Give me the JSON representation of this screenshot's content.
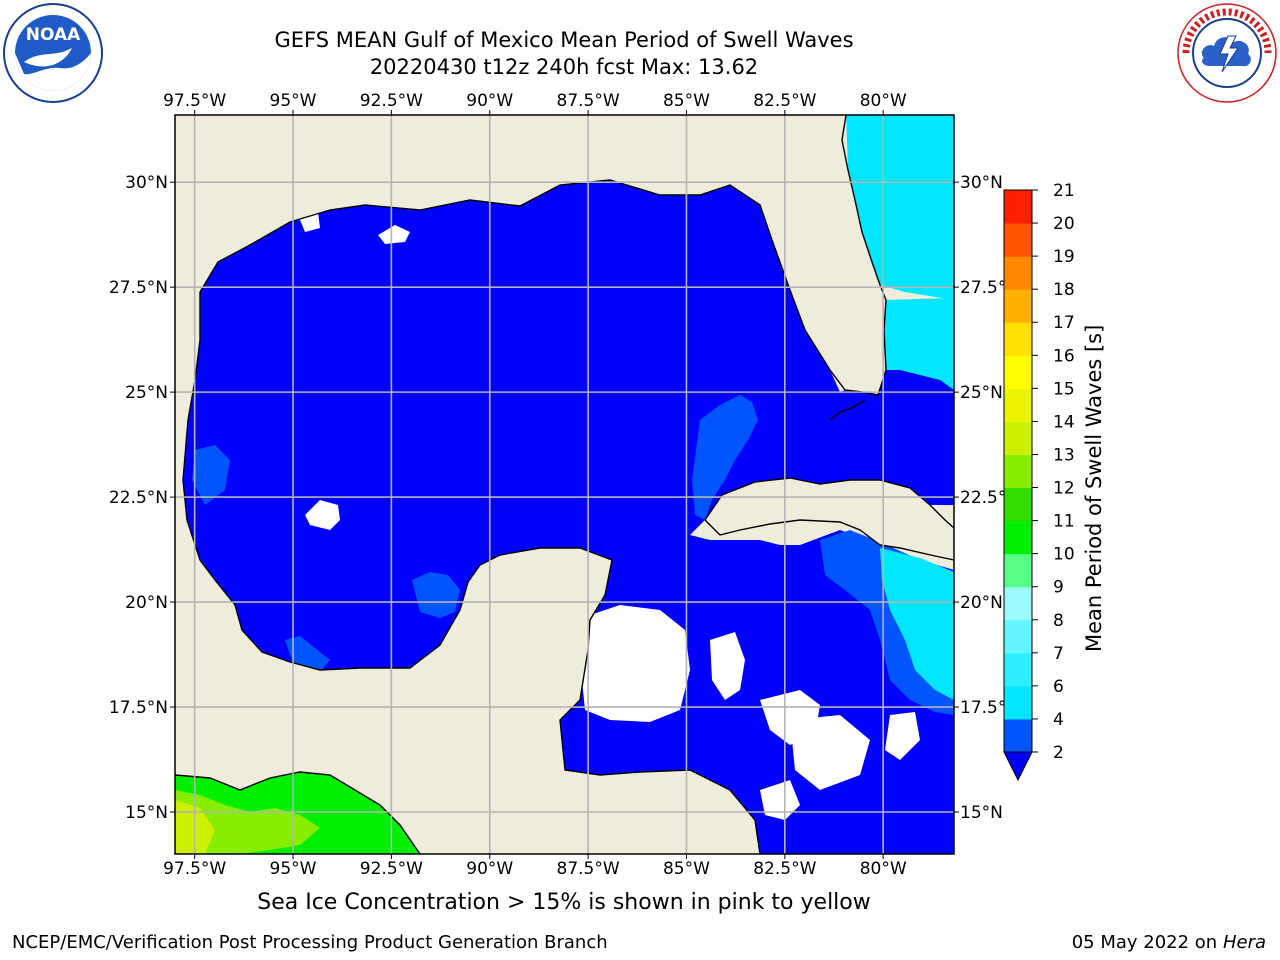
{
  "header": {
    "title_line1": "GEFS MEAN Gulf of Mexico Mean Period of Swell Waves",
    "title_line2": "20220430 t12z 240h fcst   Max: 13.62"
  },
  "logos": {
    "left": "noaa-logo",
    "right": "national-weather-service-logo",
    "left_text": "NOAA",
    "right_text": "NATIONAL WEATHER SERVICE"
  },
  "map": {
    "lon_labels": [
      "97.5°W",
      "95°W",
      "92.5°W",
      "90°W",
      "87.5°W",
      "85°W",
      "82.5°W",
      "80°W"
    ],
    "lat_labels_left": [
      "30°N",
      "27.5°N",
      "25°N",
      "22.5°N",
      "20°N",
      "17.5°N",
      "15°N"
    ],
    "lat_labels_right": [
      "30°N",
      "27.5°N",
      "25°N",
      "22.5°N",
      "20°N",
      "17.5°N",
      "15°N"
    ],
    "lon_range": [
      -98,
      -78.2
    ],
    "lat_range": [
      14,
      31.6
    ],
    "colors": {
      "land": "#efecdc",
      "no_data": "#ffffff",
      "dominant_field": "#0000ff",
      "grid": "#b4b4b4"
    }
  },
  "colorbar": {
    "label": "Mean Period of Swell Waves [s]",
    "ticks": [
      "2",
      "4",
      "6",
      "7",
      "8",
      "9",
      "10",
      "11",
      "12",
      "13",
      "14",
      "15",
      "16",
      "17",
      "18",
      "19",
      "20",
      "21"
    ],
    "bands": [
      "#0055ff",
      "#00e6ff",
      "#30f0ff",
      "#60f5ff",
      "#9cfafa",
      "#55ff88",
      "#00ee00",
      "#33dd00",
      "#88ee00",
      "#ccf000",
      "#ecf500",
      "#ffff00",
      "#ffe000",
      "#ffb000",
      "#ff8800",
      "#ff5500",
      "#ff2000"
    ],
    "under_color": "#0000ff"
  },
  "chart_data": {
    "type": "heatmap",
    "title": "GEFS MEAN Gulf of Mexico Mean Period of Swell Waves",
    "subtitle": "20220430 t12z 240h fcst   Max: 13.62",
    "variable": "Mean Period of Swell Waves [s]",
    "max_value": 13.62,
    "levels": [
      2,
      4,
      6,
      7,
      8,
      9,
      10,
      11,
      12,
      13,
      14,
      15,
      16,
      17,
      18,
      19,
      20,
      21
    ],
    "colorbar_extend": "min",
    "lon_range": [
      -98,
      -78.2
    ],
    "lat_range": [
      14,
      31.6
    ],
    "regions": [
      {
        "area": "Gulf of Mexico interior",
        "period_range_s": [
          0,
          2
        ]
      },
      {
        "area": "Atlantic east of Florida",
        "period_range_s": [
          4,
          7
        ]
      },
      {
        "area": "Yucatan Channel / west of Cuba",
        "period_range_s": [
          2,
          4
        ]
      },
      {
        "area": "Caribbean south of Cuba",
        "period_range_s": [
          2,
          7
        ]
      },
      {
        "area": "Eastern Pacific south of Mexico",
        "period_range_s": [
          10,
          13.62
        ]
      }
    ]
  },
  "annotations": {
    "sea_ice_note": "Sea Ice Concentration > 15% is shown in pink to yellow"
  },
  "footer": {
    "left": "NCEP/EMC/Verification Post Processing Product Generation Branch",
    "right_prefix": "05 May 2022 on",
    "right_machine": "Hera"
  }
}
